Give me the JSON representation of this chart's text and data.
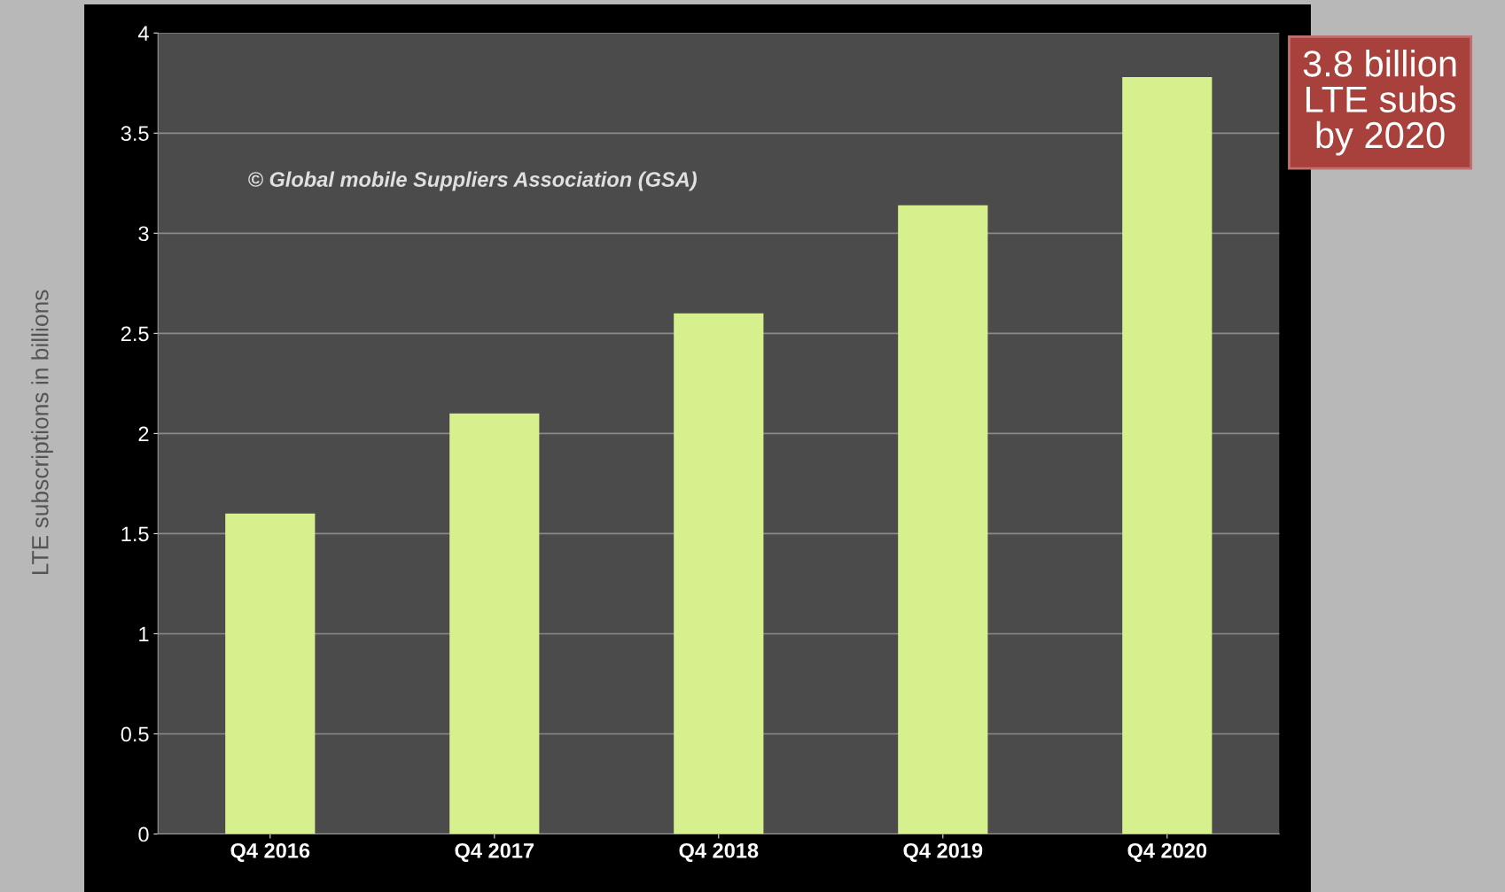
{
  "chart_data": {
    "type": "bar",
    "ylabel": "LTE subscriptions in billions",
    "categories": [
      "Q4 2016",
      "Q4 2017",
      "Q4 2018",
      "Q4 2019",
      "Q4 2020"
    ],
    "values": [
      1.6,
      2.1,
      2.6,
      3.14,
      3.78
    ],
    "color": "#d6f08e",
    "ylim": [
      0,
      4
    ],
    "yticks": [
      0,
      0.5,
      1,
      1.5,
      2,
      2.5,
      3,
      3.5,
      4
    ],
    "grid": "y",
    "annotations": [
      "© Global mobile Suppliers Association (GSA)",
      "3.8 billion\nLTE subs\nby 2020"
    ]
  }
}
